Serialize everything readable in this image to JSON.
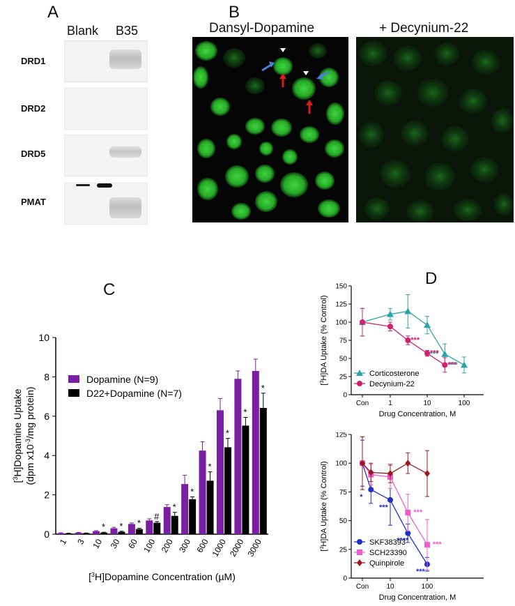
{
  "panel_labels": {
    "a": "A",
    "b": "B",
    "c": "C",
    "d": "D"
  },
  "panel_a": {
    "col_headers": [
      "Blank",
      "B35"
    ],
    "rows": [
      {
        "label": "DRD1",
        "band_b35": "strong",
        "band_blank": "none"
      },
      {
        "label": "DRD2",
        "band_b35": "none",
        "band_blank": "none"
      },
      {
        "label": "DRD5",
        "band_b35": "medium",
        "band_blank": "none"
      },
      {
        "label": "PMAT",
        "band_b35": "strong",
        "band_blank": "none"
      }
    ]
  },
  "panel_b": {
    "left_title": "Dansyl-Dopamine",
    "right_title": "+ Decynium-22",
    "colors": {
      "fluor": "#2fbf2f",
      "fluor_dim": "#1b6a1b",
      "arrow_red": "#e01b1b",
      "arrow_blue": "#4a7fd6",
      "arrow_white": "#ffffff"
    }
  },
  "chart_data": [
    {
      "id": "C",
      "type": "bar",
      "categories": [
        "1",
        "3",
        "10",
        "30",
        "60",
        "100",
        "200",
        "300",
        "600",
        "1000",
        "2000",
        "3000"
      ],
      "ylabel_line1": "[3H]Dopamine Uptake",
      "ylabel_line2": "(dpm x10-3/mg protein)",
      "xlabel": "[3H]Dopamine Concentration (µM)",
      "ylim": [
        0,
        10
      ],
      "yticks": [
        "0",
        "2",
        "4",
        "6",
        "8",
        "10"
      ],
      "series": [
        {
          "name": "Dopamine (N=9)",
          "color": "#7b1fa2",
          "values": [
            0.05,
            0.07,
            0.15,
            0.3,
            0.52,
            0.7,
            1.38,
            2.55,
            4.25,
            6.3,
            7.9,
            8.3
          ],
          "errors": [
            0.02,
            0.02,
            0.03,
            0.05,
            0.05,
            0.08,
            0.12,
            0.45,
            0.45,
            0.6,
            0.4,
            0.6
          ]
        },
        {
          "name": "D22+Dopamine (N=7)",
          "color": "#000000",
          "values": [
            0.04,
            0.05,
            0.08,
            0.12,
            0.26,
            0.58,
            0.93,
            1.78,
            2.72,
            4.42,
            5.52,
            6.42
          ],
          "errors": [
            0.01,
            0.01,
            0.02,
            0.03,
            0.04,
            0.06,
            0.18,
            0.12,
            0.45,
            0.45,
            0.42,
            0.75
          ]
        }
      ],
      "annotations": [
        "",
        "",
        "*",
        "*",
        "*",
        "#",
        "*",
        "*",
        "*",
        "*",
        "*",
        "*"
      ]
    },
    {
      "id": "D-top",
      "type": "line",
      "ylabel": "[3H]DA Uptake (% Control)",
      "xlabel": "Drug Concentration,   M",
      "xtick_labels": [
        "Con",
        "1",
        "10",
        "100"
      ],
      "ylim": [
        0,
        150
      ],
      "yticks": [
        "0",
        "25",
        "50",
        "75",
        "100",
        "125",
        "150"
      ],
      "series": [
        {
          "name": "Corticosterone",
          "color": "#2aa3a8",
          "marker": "triangle",
          "x": [
            "Con",
            1,
            3,
            10,
            30,
            100
          ],
          "y": [
            100,
            111,
            115,
            96,
            56,
            41
          ],
          "err": [
            19,
            8,
            23,
            12,
            14,
            11
          ],
          "stars": [
            "",
            "",
            "",
            "",
            "***",
            "***"
          ]
        },
        {
          "name": "Decynium-22",
          "color": "#d0206e",
          "marker": "circle",
          "x": [
            "Con",
            1,
            3,
            10,
            30
          ],
          "y": [
            100,
            94,
            75,
            57,
            41
          ],
          "err": [
            19,
            6,
            6,
            4,
            10
          ],
          "stars": [
            "",
            "",
            "***",
            "***",
            "***"
          ]
        }
      ]
    },
    {
      "id": "D-bottom",
      "type": "line",
      "ylabel": "[3H]DA Uptake (% Control)",
      "xlabel": "Drug Concentration,   M",
      "xtick_labels": [
        "Con",
        "10",
        "100"
      ],
      "ylim": [
        0,
        125
      ],
      "yticks": [
        "0",
        "25",
        "50",
        "75",
        "100",
        "125"
      ],
      "series": [
        {
          "name": "SKF38393",
          "color": "#1f2fc8",
          "marker": "circle",
          "x": [
            "Con",
            3,
            10,
            30,
            100
          ],
          "y": [
            100,
            77,
            68,
            39,
            12
          ],
          "err": [
            20,
            12,
            22,
            8,
            6
          ],
          "stars": [
            "",
            "*",
            "***",
            "****",
            "***"
          ]
        },
        {
          "name": "SCH23390",
          "color": "#f05cd0",
          "marker": "square",
          "x": [
            "Con",
            3,
            10,
            30,
            100
          ],
          "y": [
            100,
            90,
            88,
            57,
            29
          ],
          "err": [
            23,
            9,
            10,
            16,
            22
          ],
          "stars": [
            "",
            "",
            "",
            "***",
            "***"
          ]
        },
        {
          "name": "Quinpirole",
          "color": "#9b1a1a",
          "marker": "diamond",
          "x": [
            "Con",
            3,
            10,
            30,
            100
          ],
          "y": [
            100,
            92,
            91,
            100,
            91
          ],
          "err": [
            23,
            8,
            8,
            9,
            20
          ],
          "stars": [
            "",
            "",
            "",
            "",
            ""
          ]
        }
      ]
    }
  ]
}
